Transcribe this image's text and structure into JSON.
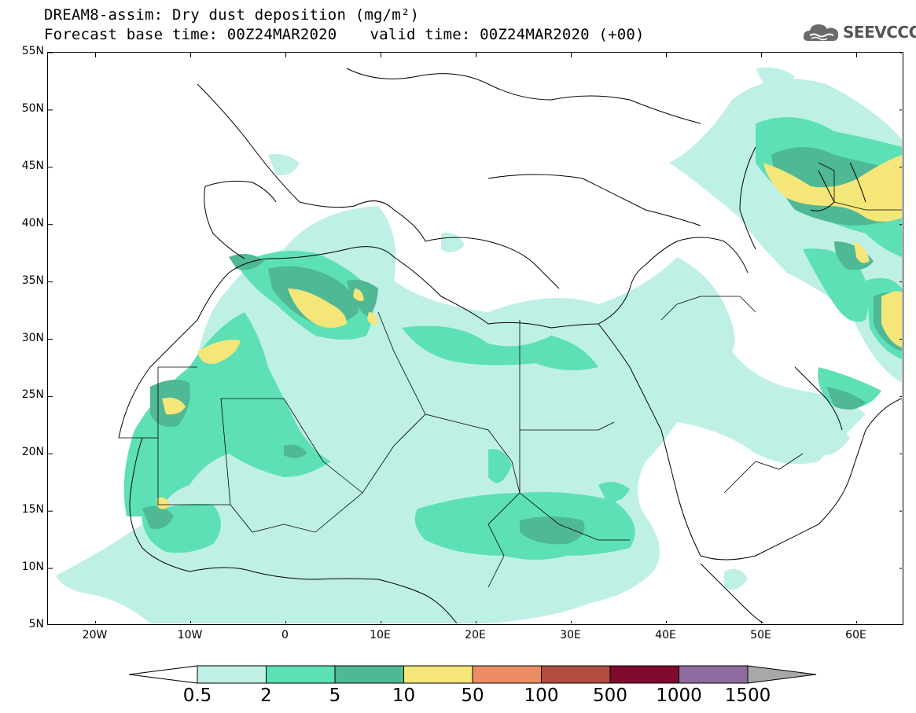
{
  "header": {
    "title_line1": "DREAM8-assim: Dry dust deposition (mg/m²)",
    "forecast_base": "Forecast base time: 00Z24MAR2020",
    "valid_time": "valid time: 00Z24MAR2020 (+00)",
    "logo_text": "SEEVCCC",
    "logo_icon": "cloud-icon"
  },
  "axes": {
    "lat_labels": [
      "55N",
      "50N",
      "45N",
      "40N",
      "35N",
      "30N",
      "25N",
      "20N",
      "15N",
      "10N",
      "5N"
    ],
    "lon_labels": [
      "20W",
      "10W",
      "0",
      "10E",
      "20E",
      "30E",
      "40E",
      "50E",
      "60E"
    ],
    "lon_range": [
      -25,
      65
    ],
    "lat_range": [
      5,
      55
    ]
  },
  "colorbar": {
    "labels": [
      "0.5",
      "2",
      "5",
      "10",
      "50",
      "100",
      "500",
      "1000",
      "1500"
    ],
    "colors": [
      "#ffffff",
      "#bff0e6",
      "#5ee0b6",
      "#4fb894",
      "#f5e67a",
      "#ec8c64",
      "#b04c40",
      "#7e0b2e",
      "#8c6ca0",
      "#a8a8a8"
    ]
  }
}
